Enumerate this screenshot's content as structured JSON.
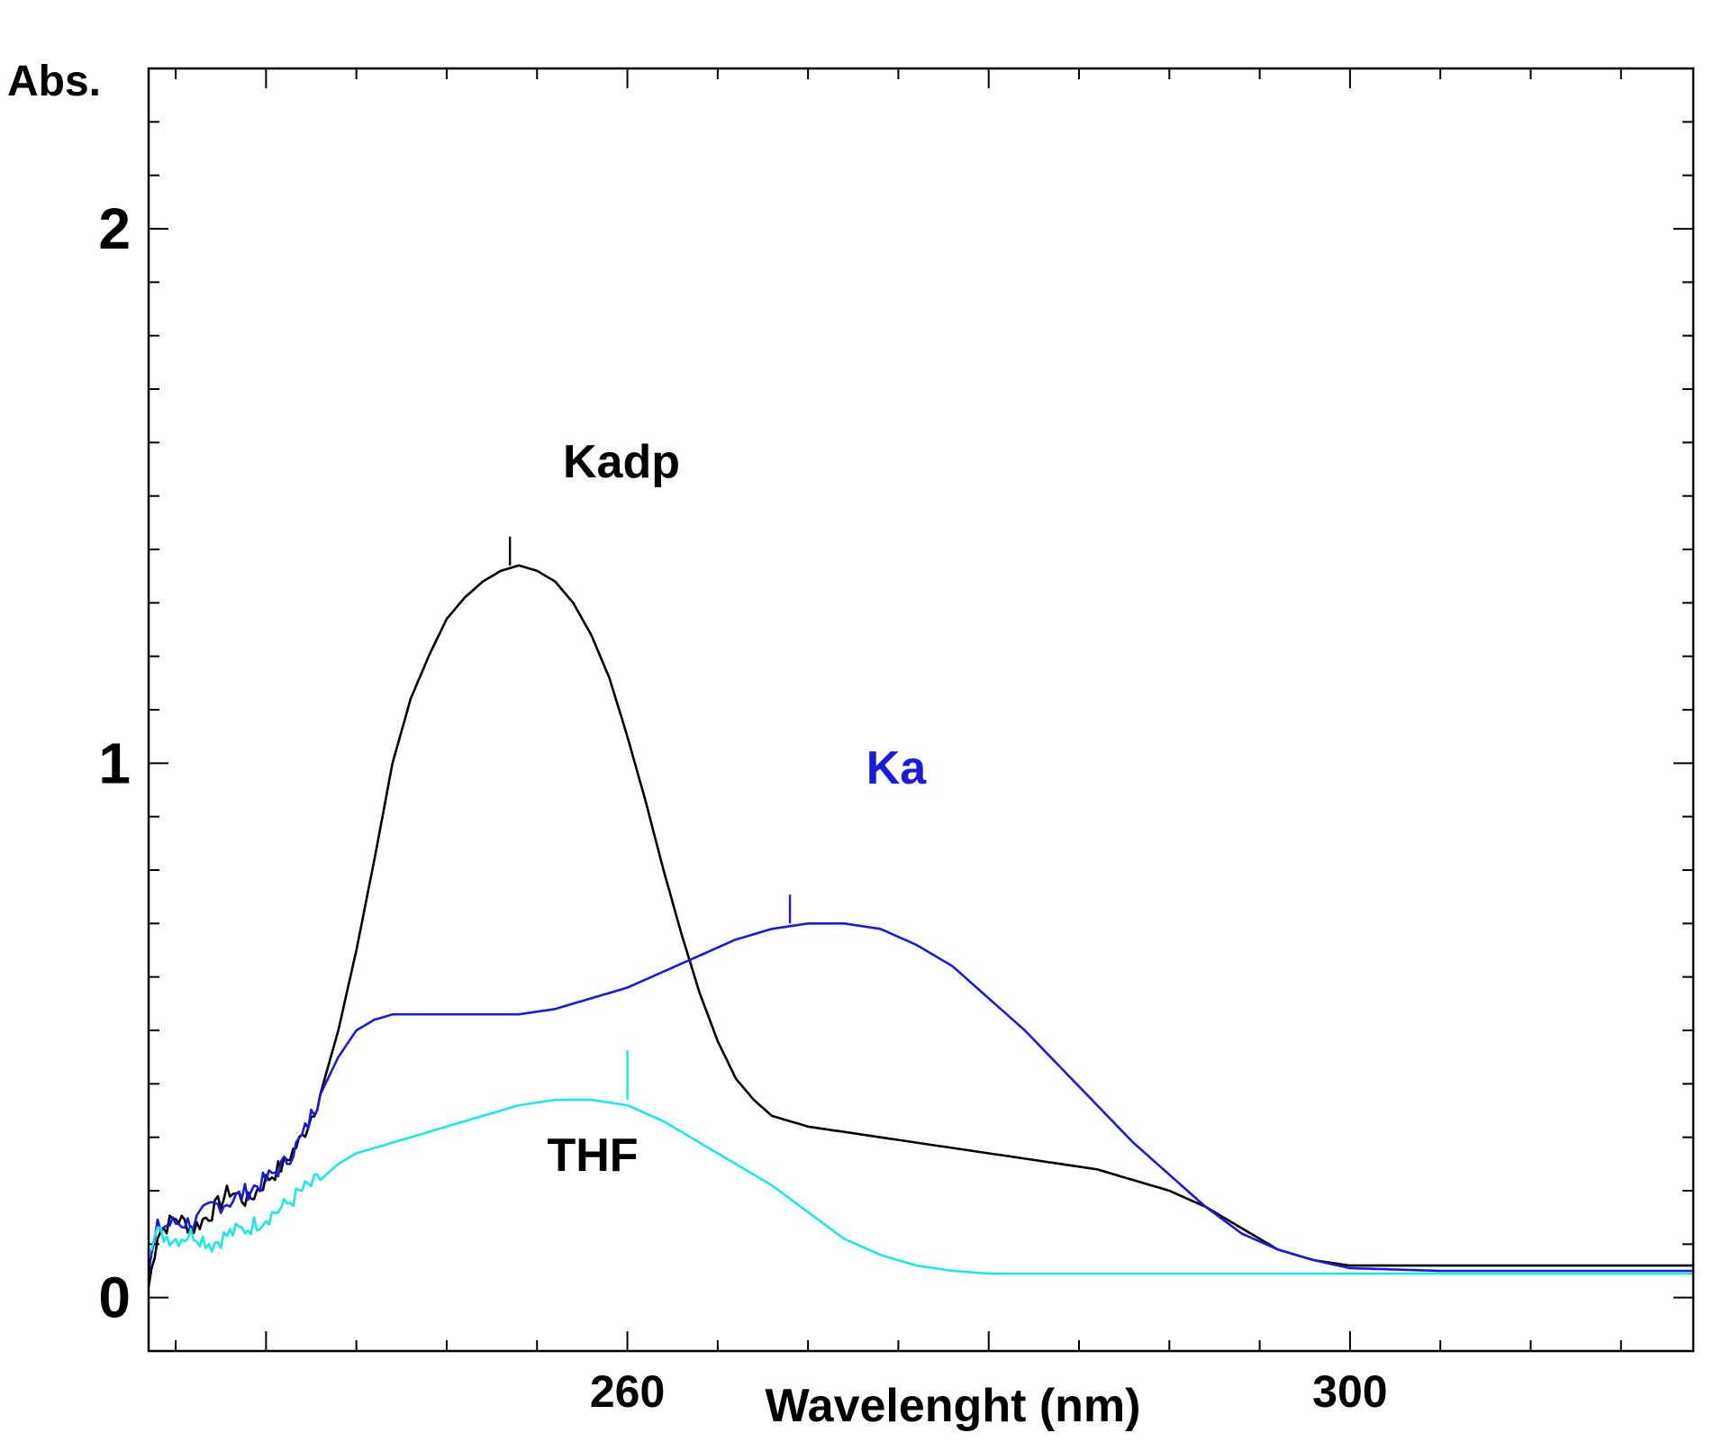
{
  "chart_data": {
    "type": "line",
    "title": "",
    "xlabel": "Wavelenght (nm)",
    "ylabel": "Abs.",
    "xlim": [
      233.5,
      319
    ],
    "ylim": [
      -0.1,
      2.3
    ],
    "grid": false,
    "x_ticks_labeled": [
      {
        "value": 260,
        "label": "260"
      },
      {
        "value": 300,
        "label": "300"
      }
    ],
    "y_ticks_labeled": [
      {
        "value": 0,
        "label": "0"
      },
      {
        "value": 1,
        "label": "1"
      },
      {
        "value": 2,
        "label": "2"
      }
    ],
    "series": [
      {
        "name": "Kadp",
        "color": "#000000",
        "points": [
          [
            233.5,
            0.02
          ],
          [
            234,
            0.12
          ],
          [
            235,
            0.15
          ],
          [
            236,
            0.13
          ],
          [
            237,
            0.16
          ],
          [
            238,
            0.2
          ],
          [
            239,
            0.18
          ],
          [
            240,
            0.22
          ],
          [
            241,
            0.25
          ],
          [
            242,
            0.3
          ],
          [
            243,
            0.38
          ],
          [
            244,
            0.5
          ],
          [
            245,
            0.65
          ],
          [
            246,
            0.82
          ],
          [
            247,
            1.0
          ],
          [
            248,
            1.12
          ],
          [
            249,
            1.2
          ],
          [
            250,
            1.27
          ],
          [
            251,
            1.31
          ],
          [
            252,
            1.34
          ],
          [
            253,
            1.36
          ],
          [
            254,
            1.37
          ],
          [
            255,
            1.36
          ],
          [
            256,
            1.34
          ],
          [
            257,
            1.3
          ],
          [
            258,
            1.24
          ],
          [
            259,
            1.16
          ],
          [
            260,
            1.05
          ],
          [
            261,
            0.93
          ],
          [
            262,
            0.8
          ],
          [
            263,
            0.68
          ],
          [
            264,
            0.57
          ],
          [
            265,
            0.48
          ],
          [
            266,
            0.41
          ],
          [
            267,
            0.37
          ],
          [
            268,
            0.34
          ],
          [
            269,
            0.33
          ],
          [
            270,
            0.32
          ],
          [
            272,
            0.31
          ],
          [
            274,
            0.3
          ],
          [
            276,
            0.29
          ],
          [
            278,
            0.28
          ],
          [
            280,
            0.27
          ],
          [
            282,
            0.26
          ],
          [
            284,
            0.25
          ],
          [
            286,
            0.24
          ],
          [
            288,
            0.22
          ],
          [
            290,
            0.2
          ],
          [
            292,
            0.17
          ],
          [
            294,
            0.13
          ],
          [
            296,
            0.09
          ],
          [
            298,
            0.07
          ],
          [
            300,
            0.06
          ],
          [
            305,
            0.06
          ],
          [
            310,
            0.06
          ],
          [
            315,
            0.06
          ],
          [
            319,
            0.06
          ]
        ]
      },
      {
        "name": "Ka",
        "color": "#1a1adc",
        "points": [
          [
            233.5,
            0.05
          ],
          [
            234,
            0.13
          ],
          [
            235,
            0.14
          ],
          [
            236,
            0.14
          ],
          [
            237,
            0.17
          ],
          [
            238,
            0.18
          ],
          [
            239,
            0.2
          ],
          [
            240,
            0.22
          ],
          [
            241,
            0.25
          ],
          [
            242,
            0.3
          ],
          [
            243,
            0.38
          ],
          [
            244,
            0.45
          ],
          [
            245,
            0.5
          ],
          [
            246,
            0.52
          ],
          [
            247,
            0.53
          ],
          [
            248,
            0.53
          ],
          [
            250,
            0.53
          ],
          [
            252,
            0.53
          ],
          [
            254,
            0.53
          ],
          [
            256,
            0.54
          ],
          [
            258,
            0.56
          ],
          [
            260,
            0.58
          ],
          [
            262,
            0.61
          ],
          [
            264,
            0.64
          ],
          [
            266,
            0.67
          ],
          [
            268,
            0.69
          ],
          [
            270,
            0.7
          ],
          [
            272,
            0.7
          ],
          [
            274,
            0.69
          ],
          [
            276,
            0.66
          ],
          [
            278,
            0.62
          ],
          [
            280,
            0.56
          ],
          [
            282,
            0.5
          ],
          [
            284,
            0.43
          ],
          [
            286,
            0.36
          ],
          [
            288,
            0.29
          ],
          [
            290,
            0.23
          ],
          [
            292,
            0.17
          ],
          [
            294,
            0.12
          ],
          [
            296,
            0.09
          ],
          [
            298,
            0.07
          ],
          [
            300,
            0.055
          ],
          [
            305,
            0.05
          ],
          [
            310,
            0.05
          ],
          [
            315,
            0.05
          ],
          [
            319,
            0.05
          ]
        ]
      },
      {
        "name": "THF",
        "color": "#19e8e8",
        "points": [
          [
            233.5,
            0.1
          ],
          [
            234,
            0.12
          ],
          [
            235,
            0.11
          ],
          [
            236,
            0.12
          ],
          [
            237,
            0.1
          ],
          [
            238,
            0.12
          ],
          [
            239,
            0.13
          ],
          [
            240,
            0.15
          ],
          [
            241,
            0.17
          ],
          [
            242,
            0.2
          ],
          [
            243,
            0.22
          ],
          [
            244,
            0.25
          ],
          [
            245,
            0.27
          ],
          [
            246,
            0.28
          ],
          [
            248,
            0.3
          ],
          [
            250,
            0.32
          ],
          [
            252,
            0.34
          ],
          [
            254,
            0.36
          ],
          [
            256,
            0.37
          ],
          [
            258,
            0.37
          ],
          [
            260,
            0.36
          ],
          [
            262,
            0.33
          ],
          [
            264,
            0.29
          ],
          [
            266,
            0.25
          ],
          [
            268,
            0.21
          ],
          [
            270,
            0.16
          ],
          [
            272,
            0.11
          ],
          [
            274,
            0.08
          ],
          [
            276,
            0.06
          ],
          [
            278,
            0.05
          ],
          [
            280,
            0.045
          ],
          [
            285,
            0.045
          ],
          [
            290,
            0.045
          ],
          [
            295,
            0.045
          ],
          [
            300,
            0.045
          ],
          [
            305,
            0.045
          ],
          [
            310,
            0.045
          ],
          [
            319,
            0.045
          ]
        ]
      }
    ],
    "annotations": [
      {
        "text": "Kadp",
        "color": "#000000",
        "marker_x": 253.5,
        "marker_y": 1.37
      },
      {
        "text": "Ka",
        "color": "#1a1adc",
        "marker_x": 269,
        "marker_y": 0.7
      },
      {
        "text": "THF",
        "color": "#000000",
        "marker_x": 260,
        "marker_y": 0.37
      }
    ]
  }
}
